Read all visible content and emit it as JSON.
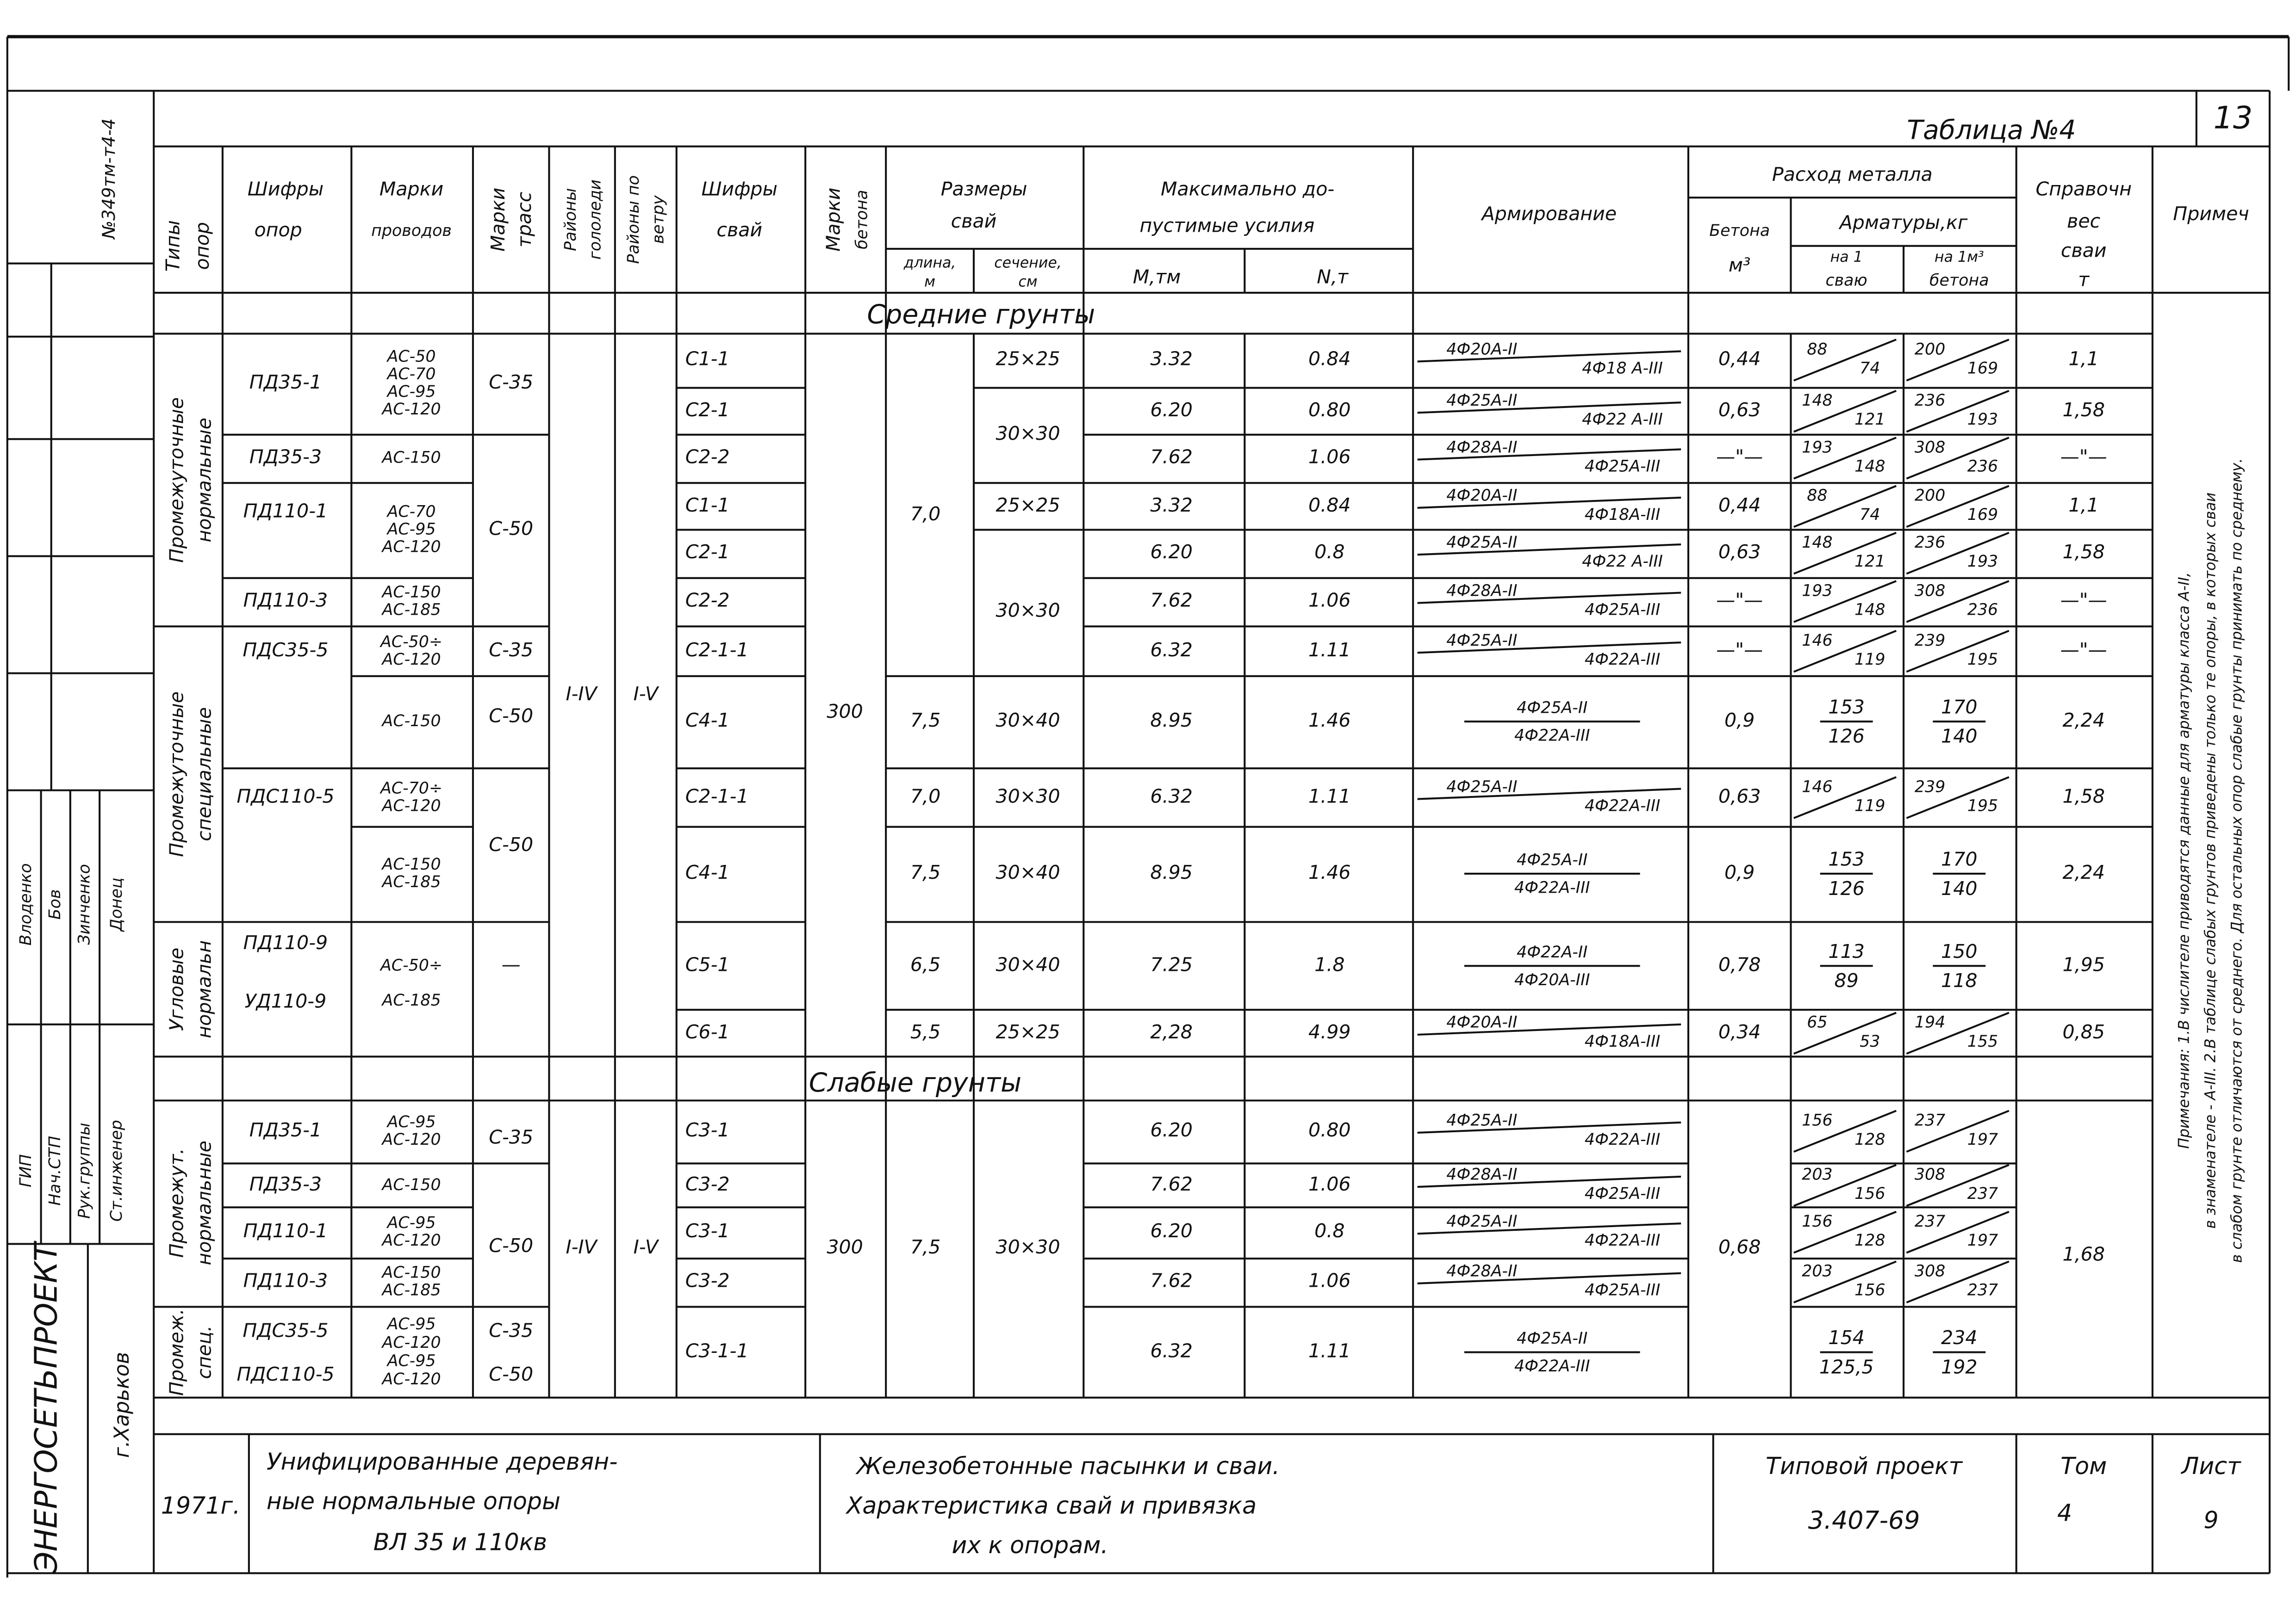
{
  "sheet_code": "№349тм-т4-4",
  "page_number": "13",
  "table_title": "Таблица №4",
  "header": {
    "support_types": [
      "Типы",
      "опор"
    ],
    "support_codes": [
      "Шифры",
      "опор"
    ],
    "wire_marks": [
      "Марки",
      "проводов"
    ],
    "route_marks": [
      "Марки",
      "трасс"
    ],
    "ice_regions": [
      "Районы",
      "гололеди"
    ],
    "wind_regions": [
      "Районы по",
      "ветру"
    ],
    "pile_codes": [
      "Шифры",
      "свай"
    ],
    "concrete_marks": [
      "Марки",
      "бетона"
    ],
    "pile_dimensions": [
      "Размеры",
      "свай"
    ],
    "length": [
      "длина,",
      "м"
    ],
    "section": [
      "сечение,",
      "см"
    ],
    "max_forces": [
      "Максимально до-",
      "пустимые усилия"
    ],
    "moment": "М,тм",
    "normal_force": "N,т",
    "reinforcement": "Армирование",
    "metal_consumption": "Расход металла",
    "concrete": [
      "Бетона",
      "м³"
    ],
    "rebar": "Арматуры,кг",
    "per_pile": [
      "на 1",
      "сваю"
    ],
    "per_m3": [
      "на 1м³",
      "бетона"
    ],
    "reference_weight": [
      "Справочн",
      "вес",
      "сваи",
      "т"
    ],
    "remarks": "Примеч"
  },
  "sections": [
    {
      "title": "Средние грунты",
      "rows": [
        {
          "type": [
            "Промежуточные",
            "нормальные"
          ],
          "support": "ПД35-1",
          "wires": [
            "АС-50",
            "АС-70",
            "АС-95",
            "АС-120"
          ],
          "route": "С-35",
          "pile": "С1-1",
          "section": "25×25",
          "moment": "3.32",
          "force": "0.84",
          "reinforcement": [
            "4Ф20А-II",
            "4Ф18 А-III"
          ],
          "concrete": "0,44",
          "per_pile": [
            "88",
            "74"
          ],
          "per_m3": [
            "200",
            "169"
          ],
          "weight": "1,1"
        },
        {
          "pile": "С2-1",
          "section": "30×30",
          "moment": "6.20",
          "force": "0.80",
          "reinforcement": [
            "4Ф25А-II",
            "4Ф22 А-III"
          ],
          "concrete": "0,63",
          "per_pile": [
            "148",
            "121"
          ],
          "per_m3": [
            "236",
            "193"
          ],
          "weight": "1,58"
        },
        {
          "support": "ПД35-3",
          "wires": [
            "АС-150"
          ],
          "route": "С-50",
          "pile": "С2-2",
          "moment": "7.62",
          "force": "1.06",
          "reinforcement": [
            "4Ф28А-II",
            "4Ф25А-III"
          ],
          "concrete": "—\"—",
          "per_pile": [
            "193",
            "148"
          ],
          "per_m3": [
            "308",
            "236"
          ],
          "weight": "—\"—"
        },
        {
          "support": "ПД110-1",
          "wires": [
            "АС-70",
            "АС-95",
            "АС-120"
          ],
          "pile": "С1-1",
          "length": "7,0",
          "section": "25×25",
          "moment": "3.32",
          "force": "0.84",
          "reinforcement": [
            "4Ф20А-II",
            "4Ф18А-III"
          ],
          "concrete": "0,44",
          "per_pile": [
            "88",
            "74"
          ],
          "per_m3": [
            "200",
            "169"
          ],
          "weight": "1,1"
        },
        {
          "pile": "С2-1",
          "moment": "6.20",
          "force": "0.8",
          "reinforcement": [
            "4Ф25А-II",
            "4Ф22 А-III"
          ],
          "concrete": "0,63",
          "per_pile": [
            "148",
            "121"
          ],
          "per_m3": [
            "236",
            "193"
          ],
          "weight": "1,58"
        },
        {
          "support": "ПД110-3",
          "wires": [
            "АС-150",
            "АС-185"
          ],
          "pile": "С2-2",
          "section": "30×30",
          "moment": "7.62",
          "force": "1.06",
          "reinforcement": [
            "4Ф28А-II",
            "4Ф25А-III"
          ],
          "concrete": "—\"—",
          "per_pile": [
            "193",
            "148"
          ],
          "per_m3": [
            "308",
            "236"
          ],
          "weight": "—\"—"
        },
        {
          "type": [
            "Промежуточные",
            "специальные"
          ],
          "support": "ПДС35-5",
          "wires": [
            "АС-50÷",
            "АС-120"
          ],
          "route": "С-35",
          "ice": "I-IV",
          "wind": "I-V",
          "pile": "С2-1-1",
          "moment": "6.32",
          "force": "1.11",
          "reinforcement": [
            "4Ф25А-II",
            "4Ф22А-III"
          ],
          "concrete": "—\"—",
          "per_pile": [
            "146",
            "119"
          ],
          "per_m3": [
            "239",
            "195"
          ],
          "weight": "—\"—"
        },
        {
          "wires": [
            "АС-150"
          ],
          "route": "С-50",
          "pile": "С4-1",
          "concrete_mark": "300",
          "length": "7,5",
          "section": "30×40",
          "moment": "8.95",
          "force": "1.46",
          "reinforcement": [
            "4Ф25А-II",
            "4Ф22А-III"
          ],
          "concrete": "0,9",
          "per_pile": [
            "153",
            "126"
          ],
          "per_m3": [
            "170",
            "140"
          ],
          "weight": "2,24"
        },
        {
          "support": "ПДС110-5",
          "wires": [
            "АС-70÷",
            "АС-120"
          ],
          "pile": "С2-1-1",
          "length": "7,0",
          "section": "30×30",
          "moment": "6.32",
          "force": "1.11",
          "reinforcement": [
            "4Ф25А-II",
            "4Ф22А-III"
          ],
          "concrete": "0,63",
          "per_pile": [
            "146",
            "119"
          ],
          "per_m3": [
            "239",
            "195"
          ],
          "weight": "1,58"
        },
        {
          "wires": [
            "АС-150",
            "АС-185"
          ],
          "route": "С-50",
          "pile": "С4-1",
          "length": "7,5",
          "section": "30×40",
          "moment": "8.95",
          "force": "1.46",
          "reinforcement": [
            "4Ф25А-II",
            "4Ф22А-III"
          ],
          "concrete": "0,9",
          "per_pile": [
            "153",
            "126"
          ],
          "per_m3": [
            "170",
            "140"
          ],
          "weight": "2,24"
        },
        {
          "type": [
            "Угловые",
            "нормальн"
          ],
          "support": [
            "ПД110-9",
            "УД110-9"
          ],
          "wires": [
            "АС-50÷",
            "АС-185"
          ],
          "route": "—",
          "pile": "С5-1",
          "length": "6,5",
          "section": "30×40",
          "moment": "7.25",
          "force": "1.8",
          "reinforcement": [
            "4Ф22А-II",
            "4Ф20А-III"
          ],
          "concrete": "0,78",
          "per_pile": [
            "113",
            "89"
          ],
          "per_m3": [
            "150",
            "118"
          ],
          "weight": "1,95"
        },
        {
          "pile": "С6-1",
          "length": "5,5",
          "section": "25×25",
          "moment": "2,28",
          "force": "4.99",
          "reinforcement": [
            "4Ф20А-II",
            "4Ф18А-III"
          ],
          "concrete": "0,34",
          "per_pile": [
            "65",
            "53"
          ],
          "per_m3": [
            "194",
            "155"
          ],
          "weight": "0,85"
        }
      ]
    },
    {
      "title": "Слабые грунты",
      "rows": [
        {
          "type": [
            "Промежут.",
            "нормальные"
          ],
          "support": "ПД35-1",
          "wires": [
            "АС-95",
            "АС-120"
          ],
          "route": "С-35",
          "ice": "I-IV",
          "wind": "I-V",
          "pile": "С3-1",
          "concrete_mark": "300",
          "length": "7,5",
          "section": "30×30",
          "moment": "6.20",
          "force": "0.80",
          "reinforcement": [
            "4Ф25А-II",
            "4Ф22А-III"
          ],
          "concrete": "0,68",
          "per_pile": [
            "156",
            "128"
          ],
          "per_m3": [
            "237",
            "197"
          ],
          "weight": "1,68"
        },
        {
          "support": "ПД35-3",
          "wires": [
            "АС-150"
          ],
          "route": "С-50",
          "pile": "С3-2",
          "moment": "7.62",
          "force": "1.06",
          "reinforcement": [
            "4Ф28А-II",
            "4Ф25А-III"
          ],
          "per_pile": [
            "203",
            "156"
          ],
          "per_m3": [
            "308",
            "237"
          ]
        },
        {
          "support": "ПД110-1",
          "wires": [
            "АС-95",
            "АС-120"
          ],
          "pile": "С3-1",
          "moment": "6.20",
          "force": "0.8",
          "reinforcement": [
            "4Ф25А-II",
            "4Ф22А-III"
          ],
          "per_pile": [
            "156",
            "128"
          ],
          "per_m3": [
            "237",
            "197"
          ]
        },
        {
          "support": "ПД110-3",
          "wires": [
            "АС-150",
            "АС-185"
          ],
          "pile": "С3-2",
          "moment": "7.62",
          "force": "1.06",
          "reinforcement": [
            "4Ф28А-II",
            "4Ф25А-III"
          ],
          "per_pile": [
            "203",
            "156"
          ],
          "per_m3": [
            "308",
            "237"
          ]
        },
        {
          "type": [
            "Промеж.",
            "спец."
          ],
          "support": [
            "ПДС35-5",
            "ПДС110-5"
          ],
          "wires": [
            "АС-95",
            "АС-120",
            "АС-95",
            "АС-120"
          ],
          "route": [
            "С-35",
            "С-50"
          ],
          "pile": "С3-1-1",
          "moment": "6.32",
          "force": "1.11",
          "reinforcement": [
            "4Ф25А-II",
            "4Ф22А-III"
          ],
          "per_pile": [
            "154",
            "125,5"
          ],
          "per_m3": [
            "234",
            "192"
          ]
        }
      ]
    }
  ],
  "note": [
    "Примечания: 1.В числителе приводятся данные для арматуры класса А-II,",
    "в знаменателе - А-III. 2.В таблице слабых грунтов приведены только те опоры, в которых сваи",
    "в слабом грунте отличаются от среднего. Для остальных опор слабые грунты принимать по среднему."
  ],
  "title_block": {
    "year": "1971г.",
    "title": [
      "Унифицированные деревян-",
      "ные нормальные опоры",
      "ВЛ 35 и 110кв"
    ],
    "subject": [
      "Железобетонные пасынки и сваи.",
      "Характеристика свай и привязка",
      "их к опорам."
    ],
    "project_label": "Типовой проект",
    "project_number": "3.407-69",
    "volume_label": "Том",
    "volume": "4",
    "sheet_label": "Лист",
    "sheet": "9"
  },
  "side_block": {
    "organization": "ЭНЕРГОСЕТЬПРОЕКТ",
    "city": "г.Харьков",
    "roles": [
      "ГИП",
      "Нач.СТП",
      "Рук.группы",
      "Ст.инженер"
    ],
    "names": [
      "Влоденко",
      "Бов",
      "Зинченко",
      "Донец"
    ]
  }
}
